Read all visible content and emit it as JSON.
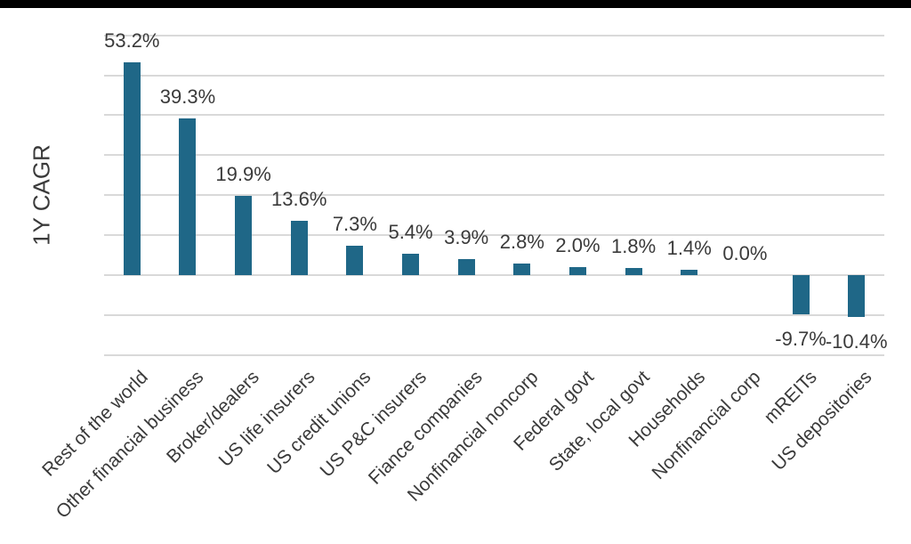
{
  "window": {
    "top_strip_color": "#000000"
  },
  "chart_data": {
    "type": "bar",
    "title": "",
    "ylabel": "1Y CAGR",
    "xlabel": "",
    "categories": [
      "Rest of the world",
      "Other financial business",
      "Broker/dealers",
      "US life insurers",
      "US credit unions",
      "US P&C insurers",
      "Fiance companies",
      "Nonfinancial noncorp",
      "Federal govt",
      "State, local govt",
      "Households",
      "Nonfinancial corp",
      "mREITs",
      "US depositories"
    ],
    "values": [
      53.2,
      39.3,
      19.9,
      13.6,
      7.3,
      5.4,
      3.9,
      2.8,
      2.0,
      1.8,
      1.4,
      0.0,
      -9.7,
      -10.4
    ],
    "value_labels": [
      "53.2%",
      "39.3%",
      "19.9%",
      "13.6%",
      "7.3%",
      "5.4%",
      "3.9%",
      "2.8%",
      "2.0%",
      "1.8%",
      "1.4%",
      "0.0%",
      "-9.7%",
      "-10.4%"
    ],
    "ylim": [
      -20,
      60
    ],
    "grid_step": 10,
    "grid": true,
    "legend": false,
    "x_tick_rotation_deg": 45,
    "colors": {
      "bar": "#1f6787",
      "gridline": "#d9d9d9",
      "text": "#3a3a3a"
    }
  }
}
